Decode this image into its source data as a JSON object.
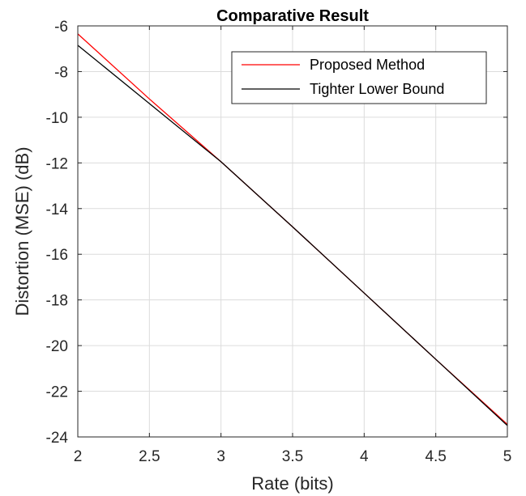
{
  "chart_data": {
    "type": "line",
    "title": "Comparative Result",
    "xlabel": "Rate (bits)",
    "ylabel": "Distortion (MSE) (dB)",
    "xlim": [
      2,
      5
    ],
    "ylim": [
      -24,
      -6
    ],
    "xticks": [
      "2",
      "2.5",
      "3",
      "3.5",
      "4",
      "4.5",
      "5"
    ],
    "yticks": [
      "-24",
      "-22",
      "-20",
      "-18",
      "-16",
      "-14",
      "-12",
      "-10",
      "-8",
      "-6"
    ],
    "grid": true,
    "legend_position": "top-right",
    "series": [
      {
        "name": "Proposed Method",
        "color": "#ff0000",
        "x": [
          2.0,
          2.5,
          3.0,
          3.5,
          4.0,
          4.5,
          5.0
        ],
        "y": [
          -6.35,
          -9.2,
          -11.95,
          -14.8,
          -17.7,
          -20.6,
          -23.45
        ]
      },
      {
        "name": "Tighter Lower Bound",
        "color": "#000000",
        "x": [
          2.0,
          2.5,
          3.0,
          3.5,
          4.0,
          4.5,
          5.0
        ],
        "y": [
          -6.85,
          -9.4,
          -11.95,
          -14.8,
          -17.7,
          -20.6,
          -23.5
        ]
      }
    ]
  }
}
